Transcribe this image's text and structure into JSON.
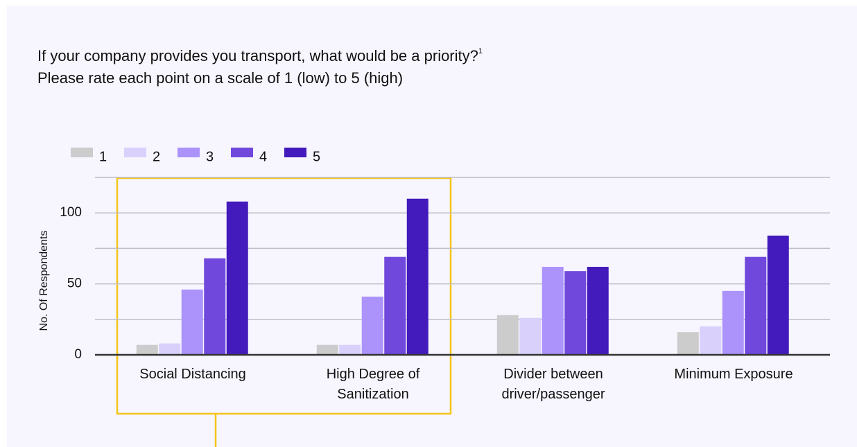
{
  "chart_data": {
    "type": "bar",
    "title": "If your company provides you transport, what would be a priority?",
    "title_footnote": "1",
    "subtitle": "Please rate each point on a scale of  1 (low)  to 5 (high)",
    "y_label": "No. Of Respondents",
    "categories": [
      "Social Distancing",
      "High Degree of Sanitization",
      "Divider between driver/passenger",
      "Minimum Exposure"
    ],
    "series": [
      {
        "name": "1",
        "color": "#cccccc",
        "values": [
          7,
          7,
          28,
          16
        ]
      },
      {
        "name": "2",
        "color": "#d9d0fb",
        "values": [
          8,
          7,
          26,
          20
        ]
      },
      {
        "name": "3",
        "color": "#ab93fb",
        "values": [
          46,
          41,
          62,
          45
        ]
      },
      {
        "name": "4",
        "color": "#7048dc",
        "values": [
          68,
          69,
          59,
          69
        ]
      },
      {
        "name": "5",
        "color": "#431abb",
        "values": [
          108,
          110,
          62,
          84
        ]
      }
    ],
    "ylim": [
      0,
      125
    ],
    "yticks": [
      0,
      50,
      100
    ],
    "minor_yticks": [
      25,
      75,
      125
    ],
    "grid": true
  }
}
